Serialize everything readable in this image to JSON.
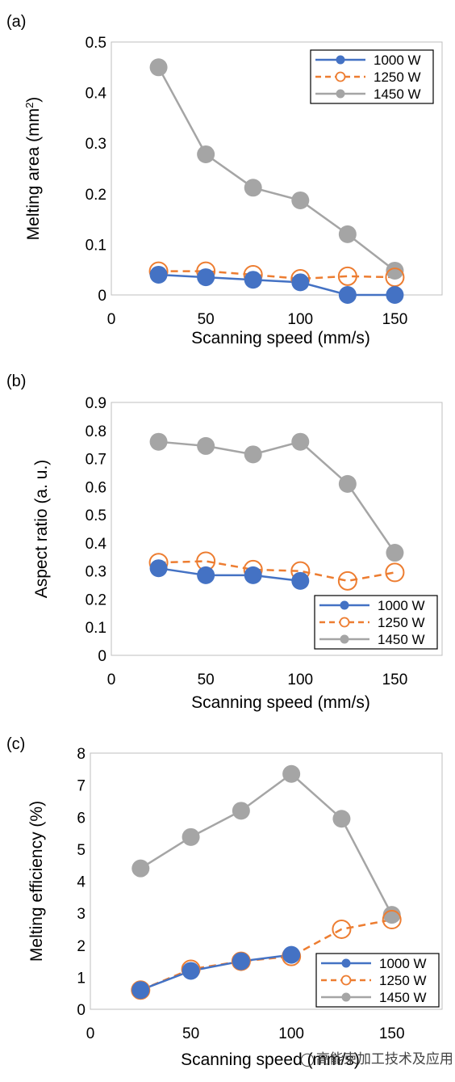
{
  "chart_data": [
    {
      "type": "line",
      "panel_label": "(a)",
      "ylabel": "Melting area (mm",
      "ylabel_sup": "2",
      "ylabel_close": ")",
      "xlabel": "Scanning speed (mm/s)",
      "xlim": [
        0,
        175
      ],
      "ylim": [
        0,
        0.5
      ],
      "xticks": [
        0,
        50,
        100,
        150
      ],
      "yticks": [
        0,
        0.1,
        0.2,
        0.3,
        0.4,
        0.5
      ],
      "ytick_labels": [
        "0",
        "0.1",
        "0.2",
        "0.3",
        "0.4",
        "0.5"
      ],
      "legend_position": "top-right",
      "grid": false,
      "series": [
        {
          "name": "1000 W",
          "color": "#4472c4",
          "style": "solid",
          "marker": "filled",
          "x": [
            25,
            50,
            75,
            100,
            125,
            150
          ],
          "y": [
            0.04,
            0.035,
            0.03,
            0.025,
            0.0,
            0.0
          ]
        },
        {
          "name": "1250 W",
          "color": "#ed7d31",
          "style": "dashed",
          "marker": "open",
          "x": [
            25,
            50,
            75,
            100,
            125,
            150
          ],
          "y": [
            0.047,
            0.047,
            0.04,
            0.032,
            0.037,
            0.035
          ]
        },
        {
          "name": "1450 W",
          "color": "#a5a5a5",
          "style": "solid",
          "marker": "filled",
          "x": [
            25,
            50,
            75,
            100,
            125,
            150
          ],
          "y": [
            0.45,
            0.278,
            0.212,
            0.187,
            0.12,
            0.048
          ]
        }
      ]
    },
    {
      "type": "line",
      "panel_label": "(b)",
      "ylabel": "Aspect ratio (a. u.)",
      "xlabel": "Scanning speed (mm/s)",
      "xlim": [
        0,
        175
      ],
      "ylim": [
        0,
        0.9
      ],
      "xticks": [
        0,
        50,
        100,
        150
      ],
      "yticks": [
        0,
        0.1,
        0.2,
        0.3,
        0.4,
        0.5,
        0.6,
        0.7,
        0.8,
        0.9
      ],
      "ytick_labels": [
        "0",
        "0.1",
        "0.2",
        "0.3",
        "0.4",
        "0.5",
        "0.6",
        "0.7",
        "0.8",
        "0.9"
      ],
      "legend_position": "bottom-right",
      "grid": false,
      "series": [
        {
          "name": "1000 W",
          "color": "#4472c4",
          "style": "solid",
          "marker": "filled",
          "x": [
            25,
            50,
            75,
            100
          ],
          "y": [
            0.31,
            0.285,
            0.285,
            0.265
          ]
        },
        {
          "name": "1250 W",
          "color": "#ed7d31",
          "style": "dashed",
          "marker": "open",
          "x": [
            25,
            50,
            75,
            100,
            125,
            150
          ],
          "y": [
            0.33,
            0.335,
            0.305,
            0.3,
            0.265,
            0.295
          ]
        },
        {
          "name": "1450 W",
          "color": "#a5a5a5",
          "style": "solid",
          "marker": "filled",
          "x": [
            25,
            50,
            75,
            100,
            125,
            150
          ],
          "y": [
            0.76,
            0.745,
            0.715,
            0.76,
            0.61,
            0.365
          ]
        }
      ]
    },
    {
      "type": "line",
      "panel_label": "(c)",
      "ylabel": "Melting efficiency (%)",
      "xlabel": "Scanning speed (mm/s)",
      "xlim": [
        0,
        175
      ],
      "ylim": [
        0,
        8
      ],
      "xticks": [
        0,
        50,
        100,
        150
      ],
      "yticks": [
        0,
        1,
        2,
        3,
        4,
        5,
        6,
        7,
        8
      ],
      "ytick_labels": [
        "0",
        "1",
        "2",
        "3",
        "4",
        "5",
        "6",
        "7",
        "8"
      ],
      "legend_position": "bottom-right",
      "grid": false,
      "series": [
        {
          "name": "1000 W",
          "color": "#4472c4",
          "style": "solid",
          "marker": "filled",
          "x": [
            25,
            50,
            75,
            100
          ],
          "y": [
            0.6,
            1.2,
            1.5,
            1.7
          ]
        },
        {
          "name": "1250 W",
          "color": "#ed7d31",
          "style": "dashed",
          "marker": "open",
          "x": [
            25,
            50,
            75,
            100,
            125,
            150
          ],
          "y": [
            0.6,
            1.25,
            1.5,
            1.65,
            2.5,
            2.8
          ]
        },
        {
          "name": "1450 W",
          "color": "#a5a5a5",
          "style": "solid",
          "marker": "filled",
          "x": [
            25,
            50,
            75,
            100,
            125,
            150
          ],
          "y": [
            4.4,
            5.38,
            6.2,
            7.35,
            5.95,
            2.95
          ]
        }
      ]
    }
  ],
  "watermark": {
    "icon": "wechat-icon",
    "text": "高能束加工技术及应用"
  }
}
